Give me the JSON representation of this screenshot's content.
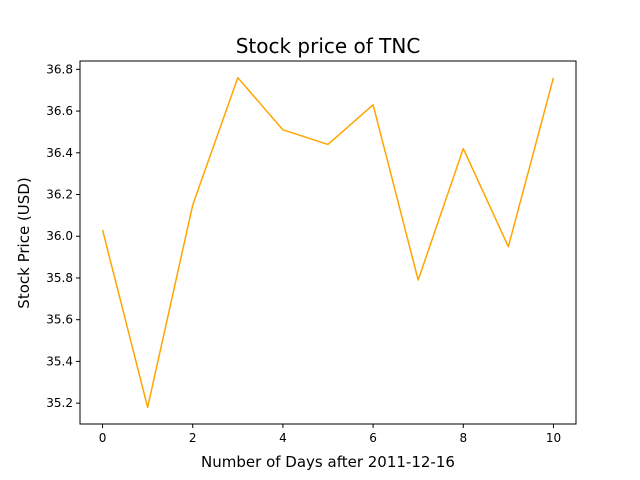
{
  "chart_data": {
    "type": "line",
    "title": "Stock price of TNC",
    "xlabel": "Number of Days after 2011-12-16",
    "ylabel": "Stock Price (USD)",
    "x": [
      0,
      1,
      2,
      3,
      4,
      5,
      6,
      7,
      8,
      9,
      10
    ],
    "series": [
      {
        "values": [
          36.03,
          35.18,
          36.15,
          36.76,
          36.51,
          36.44,
          36.63,
          35.79,
          36.42,
          35.95,
          36.76
        ],
        "color": "#FFA500"
      }
    ],
    "xlim": [
      -0.5,
      10.5
    ],
    "ylim": [
      35.1,
      36.84
    ],
    "xticks": [
      0,
      2,
      4,
      6,
      8,
      10
    ],
    "xtick_labels": [
      "0",
      "2",
      "4",
      "6",
      "8",
      "10"
    ],
    "yticks": [
      35.2,
      35.4,
      35.6,
      35.8,
      36.0,
      36.2,
      36.4,
      36.6,
      36.8
    ],
    "ytick_labels": [
      "35.2",
      "35.4",
      "35.6",
      "35.8",
      "36.0",
      "36.2",
      "36.4",
      "36.6",
      "36.8"
    ],
    "grid": false,
    "legend": false
  }
}
